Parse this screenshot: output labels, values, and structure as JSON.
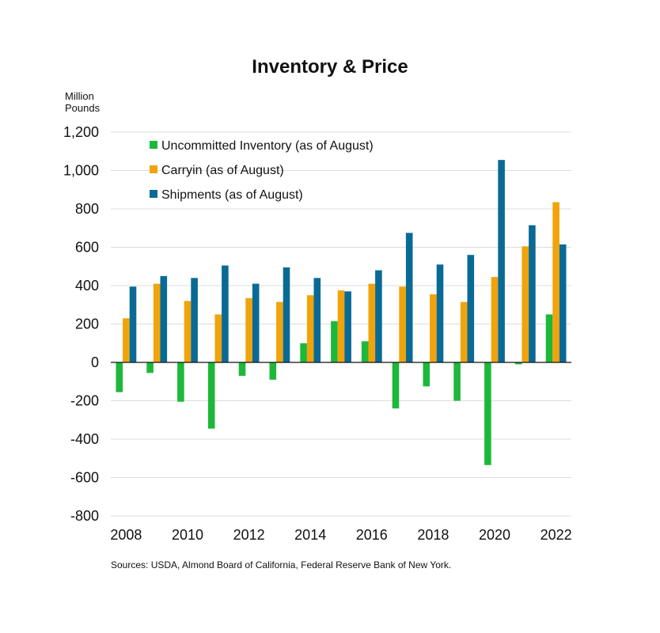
{
  "chart_data": {
    "type": "bar",
    "title": "Inventory & Price",
    "ylabel_lines": [
      "Million",
      "Pounds"
    ],
    "ylim": [
      -800,
      1200
    ],
    "yticks": [
      1200,
      1000,
      800,
      600,
      400,
      200,
      0,
      -200,
      -400,
      -600,
      -800
    ],
    "ytick_labels": [
      "1,200",
      "1,000",
      "800",
      "600",
      "400",
      "200",
      "0",
      "-200",
      "-400",
      "-600",
      "-800"
    ],
    "categories": [
      "2008",
      "2009",
      "2010",
      "2011",
      "2012",
      "2013",
      "2014",
      "2015",
      "2016",
      "2017",
      "2018",
      "2019",
      "2020",
      "2021",
      "2022"
    ],
    "xtick_labels": [
      "2008",
      "2010",
      "2012",
      "2014",
      "2016",
      "2018",
      "2020",
      "2022"
    ],
    "series": [
      {
        "name": "Uncommitted Inventory (as of August)",
        "color": "#1db83a",
        "values": [
          -155,
          -55,
          -205,
          -345,
          -70,
          -90,
          100,
          215,
          110,
          -240,
          -125,
          -200,
          -535,
          -10,
          250
        ]
      },
      {
        "name": "Carryin (as of August)",
        "color": "#f0a30a",
        "values": [
          230,
          410,
          320,
          250,
          335,
          315,
          350,
          375,
          410,
          395,
          355,
          315,
          445,
          605,
          835
        ]
      },
      {
        "name": "Shipments (as of August)",
        "color": "#0a6a96",
        "values": [
          395,
          450,
          440,
          505,
          410,
          495,
          440,
          370,
          480,
          675,
          510,
          560,
          1055,
          715,
          615
        ]
      }
    ],
    "grid": true,
    "legend_position": "top-left",
    "source": "Sources: USDA, Almond Board of California, Federal Reserve Bank of New York."
  }
}
